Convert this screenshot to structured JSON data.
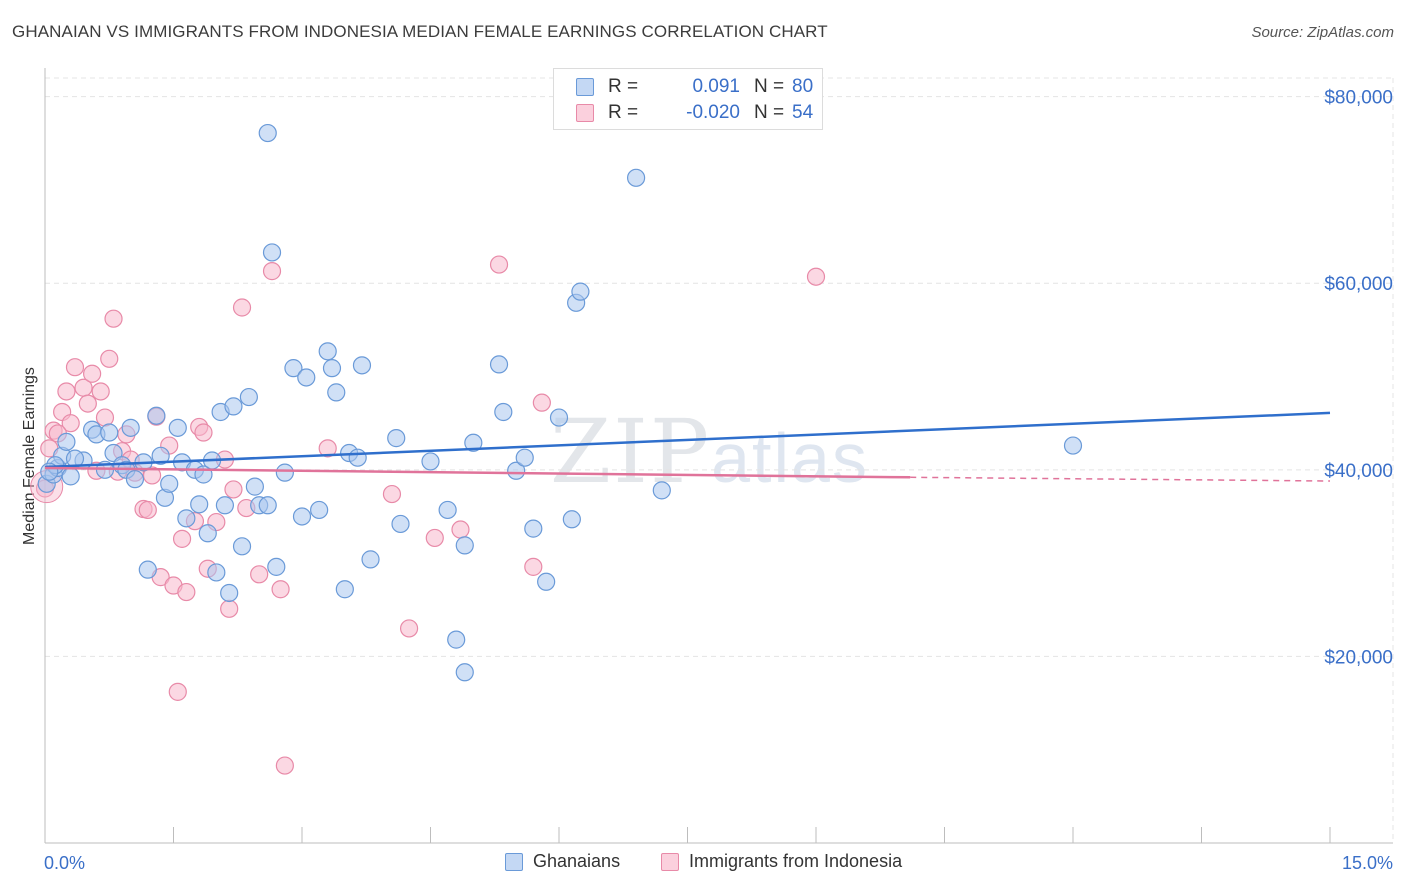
{
  "title": "GHANAIAN VS IMMIGRANTS FROM INDONESIA MEDIAN FEMALE EARNINGS CORRELATION CHART",
  "source": "Source: ZipAtlas.com",
  "watermark": {
    "zip": "ZIP",
    "atlas": "atlas"
  },
  "legend": {
    "rows": [
      {
        "r_label": "R =",
        "r_value": "0.091",
        "n_label": "N =",
        "n_value": "80"
      },
      {
        "r_label": "R =",
        "r_value": "-0.020",
        "n_label": "N =",
        "n_value": "54"
      }
    ]
  },
  "colors": {
    "blue_fill": "#a9c7ef",
    "blue_stroke": "#6a9ad8",
    "blue_line": "#2f6fcc",
    "pink_fill": "#f7b8cc",
    "pink_stroke": "#e88aa8",
    "pink_line": "#e0739a",
    "tick_label": "#3a6fc8",
    "grid": "#e4e4e4"
  },
  "chart_data": {
    "type": "scatter",
    "title": "GHANAIAN VS IMMIGRANTS FROM INDONESIA MEDIAN FEMALE EARNINGS CORRELATION CHART",
    "xlabel": "",
    "ylabel": "Median Female Earnings",
    "xlim": [
      0,
      15
    ],
    "ylim": [
      0,
      82000
    ],
    "x_tick_labels": [
      "0.0%",
      "15.0%"
    ],
    "y_ticks": [
      20000,
      40000,
      60000,
      80000
    ],
    "y_tick_labels": [
      "$20,000",
      "$40,000",
      "$60,000",
      "$80,000"
    ],
    "grid": true,
    "legend_position": "top-center",
    "series": [
      {
        "name": "Ghanaians",
        "color": "#a9c7ef",
        "r": 0.091,
        "n": 80,
        "trend": {
          "x": [
            0,
            15
          ],
          "y": [
            40300,
            46100
          ]
        },
        "points": [
          [
            0.02,
            38500
          ],
          [
            0.1,
            39500
          ],
          [
            0.15,
            40200
          ],
          [
            0.2,
            41500
          ],
          [
            0.25,
            43000
          ],
          [
            0.3,
            39300
          ],
          [
            0.45,
            41000
          ],
          [
            0.55,
            44300
          ],
          [
            0.6,
            43800
          ],
          [
            0.7,
            40000
          ],
          [
            0.75,
            44000
          ],
          [
            0.8,
            41800
          ],
          [
            0.9,
            40500
          ],
          [
            0.95,
            40000
          ],
          [
            1.0,
            44500
          ],
          [
            1.05,
            39000
          ],
          [
            1.15,
            40800
          ],
          [
            1.2,
            29300
          ],
          [
            1.3,
            45800
          ],
          [
            1.35,
            41500
          ],
          [
            1.4,
            37000
          ],
          [
            1.45,
            38500
          ],
          [
            1.55,
            44500
          ],
          [
            1.6,
            40800
          ],
          [
            1.65,
            34800
          ],
          [
            1.75,
            40000
          ],
          [
            1.8,
            36300
          ],
          [
            1.85,
            39500
          ],
          [
            1.9,
            33200
          ],
          [
            1.95,
            41000
          ],
          [
            2.0,
            29000
          ],
          [
            2.05,
            46200
          ],
          [
            2.1,
            36200
          ],
          [
            2.15,
            26800
          ],
          [
            2.2,
            46800
          ],
          [
            2.3,
            31800
          ],
          [
            2.38,
            47800
          ],
          [
            2.45,
            38200
          ],
          [
            2.5,
            36200
          ],
          [
            2.6,
            36200
          ],
          [
            2.6,
            76100
          ],
          [
            2.65,
            63300
          ],
          [
            2.7,
            29600
          ],
          [
            2.8,
            39700
          ],
          [
            2.9,
            50900
          ],
          [
            3.0,
            35000
          ],
          [
            3.05,
            49900
          ],
          [
            3.2,
            35700
          ],
          [
            3.3,
            52700
          ],
          [
            3.35,
            50900
          ],
          [
            3.4,
            48300
          ],
          [
            3.5,
            27200
          ],
          [
            3.55,
            41800
          ],
          [
            3.65,
            41300
          ],
          [
            3.7,
            51200
          ],
          [
            3.8,
            30400
          ],
          [
            4.1,
            43400
          ],
          [
            4.15,
            34200
          ],
          [
            4.5,
            40900
          ],
          [
            4.7,
            35700
          ],
          [
            4.8,
            21800
          ],
          [
            4.9,
            31900
          ],
          [
            4.9,
            18300
          ],
          [
            5.0,
            42900
          ],
          [
            5.3,
            51300
          ],
          [
            5.35,
            46200
          ],
          [
            5.5,
            39900
          ],
          [
            5.6,
            41300
          ],
          [
            5.7,
            33700
          ],
          [
            5.85,
            28000
          ],
          [
            6.0,
            45600
          ],
          [
            6.15,
            34700
          ],
          [
            6.2,
            57900
          ],
          [
            6.25,
            59100
          ],
          [
            6.9,
            71300
          ],
          [
            7.2,
            37800
          ],
          [
            12.0,
            42600
          ],
          [
            0.12,
            40500
          ],
          [
            0.35,
            41200
          ],
          [
            0.05,
            39800
          ]
        ]
      },
      {
        "name": "Immigrants from Indonesia",
        "color": "#f7b8cc",
        "r": -0.02,
        "n": 54,
        "trend": {
          "x": [
            0,
            10.1
          ],
          "y": [
            40200,
            39200
          ]
        },
        "trend_dashed": {
          "x": [
            10.1,
            15
          ],
          "y": [
            39200,
            38800
          ]
        },
        "points": [
          [
            0.0,
            38000
          ],
          [
            0.05,
            42300
          ],
          [
            0.1,
            44200
          ],
          [
            0.2,
            46200
          ],
          [
            0.25,
            48400
          ],
          [
            0.3,
            45000
          ],
          [
            0.35,
            51000
          ],
          [
            0.45,
            48800
          ],
          [
            0.5,
            47100
          ],
          [
            0.55,
            50300
          ],
          [
            0.6,
            39900
          ],
          [
            0.65,
            48400
          ],
          [
            0.7,
            45600
          ],
          [
            0.75,
            51900
          ],
          [
            0.8,
            56200
          ],
          [
            0.85,
            39800
          ],
          [
            0.9,
            42000
          ],
          [
            0.95,
            43800
          ],
          [
            1.0,
            41100
          ],
          [
            1.05,
            39700
          ],
          [
            1.15,
            35800
          ],
          [
            1.2,
            35700
          ],
          [
            1.25,
            39400
          ],
          [
            1.3,
            45700
          ],
          [
            1.35,
            28500
          ],
          [
            1.45,
            42600
          ],
          [
            1.5,
            27600
          ],
          [
            1.55,
            16200
          ],
          [
            1.6,
            32600
          ],
          [
            1.65,
            26900
          ],
          [
            1.75,
            34500
          ],
          [
            1.8,
            44600
          ],
          [
            1.85,
            44000
          ],
          [
            1.9,
            29400
          ],
          [
            2.0,
            34400
          ],
          [
            2.1,
            41100
          ],
          [
            2.15,
            25100
          ],
          [
            2.2,
            37900
          ],
          [
            2.3,
            57400
          ],
          [
            2.35,
            35900
          ],
          [
            2.5,
            28800
          ],
          [
            2.65,
            61300
          ],
          [
            2.75,
            27200
          ],
          [
            2.8,
            8300
          ],
          [
            3.3,
            42300
          ],
          [
            4.05,
            37400
          ],
          [
            4.25,
            23000
          ],
          [
            4.55,
            32700
          ],
          [
            4.85,
            33600
          ],
          [
            5.3,
            62000
          ],
          [
            5.7,
            29600
          ],
          [
            5.8,
            47200
          ],
          [
            9.0,
            60700
          ],
          [
            0.15,
            43900
          ]
        ]
      }
    ]
  },
  "bottom_legend": [
    "Ghanaians",
    "Immigrants from Indonesia"
  ]
}
